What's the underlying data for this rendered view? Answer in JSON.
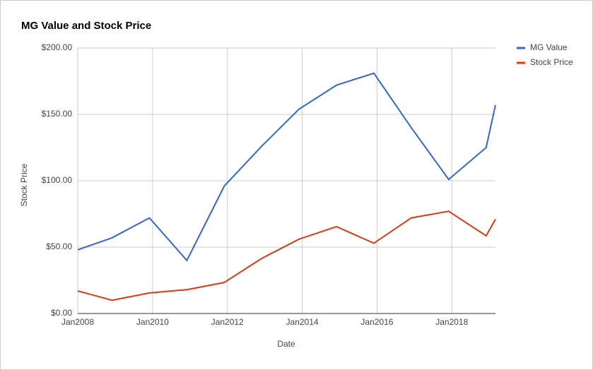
{
  "chart_data": {
    "type": "line",
    "title": "MG Value and Stock Price",
    "x_label": "Date",
    "y_label": "Stock Price",
    "x": [
      "2008-01",
      "2008-12",
      "2009-12",
      "2010-12",
      "2011-12",
      "2012-12",
      "2013-12",
      "2014-12",
      "2015-12",
      "2016-12",
      "2017-12",
      "2018-12",
      "2019-03"
    ],
    "series": [
      {
        "name": "MG Value",
        "color": "#3366cc",
        "values": [
          48,
          57,
          72,
          40,
          96,
          126,
          154,
          172,
          181,
          140,
          101,
          125,
          157
        ]
      },
      {
        "name": "Stock Price",
        "color": "#dc3912",
        "values": [
          17,
          10,
          15.5,
          18,
          23.4,
          41.5,
          56,
          65.5,
          53,
          72,
          77,
          58.5,
          71
        ]
      }
    ],
    "xlim": [
      "2008-01",
      "2019-03"
    ],
    "xticks": [
      {
        "value": "2008-01",
        "label": "Jan2008"
      },
      {
        "value": "2010-01",
        "label": "Jan2010"
      },
      {
        "value": "2012-01",
        "label": "Jan2012"
      },
      {
        "value": "2014-01",
        "label": "Jan2014"
      },
      {
        "value": "2016-01",
        "label": "Jan2016"
      },
      {
        "value": "2018-01",
        "label": "Jan2018"
      }
    ],
    "ylim": [
      0,
      200
    ],
    "yticks": [
      {
        "value": 0,
        "label": "$0.00"
      },
      {
        "value": 50,
        "label": "$50.00"
      },
      {
        "value": 100,
        "label": "$100.00"
      },
      {
        "value": 150,
        "label": "$150.00"
      },
      {
        "value": 200,
        "label": "$200.00"
      }
    ],
    "grid": true,
    "legend": "right"
  }
}
